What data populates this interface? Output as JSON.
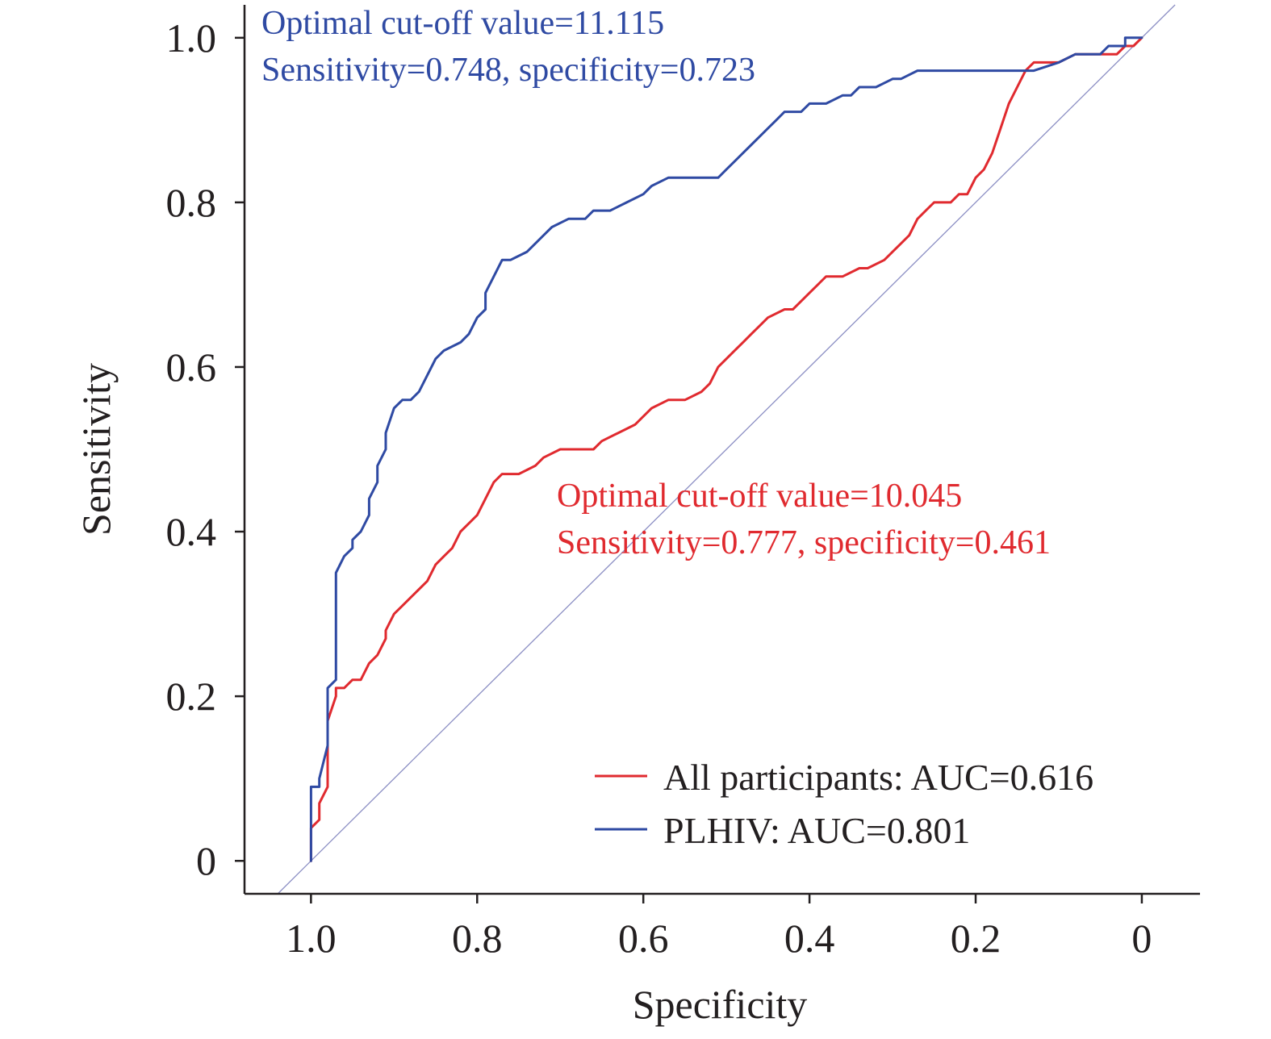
{
  "chart_data": {
    "type": "line",
    "xlabel": "Specificity",
    "ylabel": "Sensitivity",
    "x_reversed": true,
    "xlim": [
      1.08,
      -0.07
    ],
    "ylim": [
      -0.04,
      1.04
    ],
    "x_ticks": [
      1.0,
      0.8,
      0.6,
      0.4,
      0.2,
      0
    ],
    "x_tick_labels": [
      "1.0",
      "0.8",
      "0.6",
      "0.4",
      "0.2",
      "0"
    ],
    "y_ticks": [
      0,
      0.2,
      0.4,
      0.6,
      0.8,
      1.0
    ],
    "y_tick_labels": [
      "0",
      "0.2",
      "0.4",
      "0.6",
      "0.8",
      "1.0"
    ],
    "grid": false,
    "legend_position": "bottom-right",
    "reference_line": {
      "color": "#8c8fc4",
      "from": [
        1.04,
        -0.04
      ],
      "to": [
        -0.04,
        1.04
      ]
    },
    "series": [
      {
        "name": "All participants: AUC=0.616",
        "color": "#e02a2f",
        "points": [
          [
            1.0,
            0.0
          ],
          [
            1.0,
            0.03
          ],
          [
            1.0,
            0.04
          ],
          [
            0.99,
            0.05
          ],
          [
            0.99,
            0.06
          ],
          [
            0.99,
            0.07
          ],
          [
            0.98,
            0.09
          ],
          [
            0.98,
            0.13
          ],
          [
            0.98,
            0.14
          ],
          [
            0.98,
            0.17
          ],
          [
            0.97,
            0.2
          ],
          [
            0.97,
            0.21
          ],
          [
            0.96,
            0.21
          ],
          [
            0.95,
            0.22
          ],
          [
            0.94,
            0.22
          ],
          [
            0.93,
            0.24
          ],
          [
            0.92,
            0.25
          ],
          [
            0.91,
            0.27
          ],
          [
            0.91,
            0.28
          ],
          [
            0.9,
            0.3
          ],
          [
            0.89,
            0.31
          ],
          [
            0.88,
            0.32
          ],
          [
            0.87,
            0.33
          ],
          [
            0.86,
            0.34
          ],
          [
            0.85,
            0.36
          ],
          [
            0.84,
            0.37
          ],
          [
            0.83,
            0.38
          ],
          [
            0.82,
            0.4
          ],
          [
            0.81,
            0.41
          ],
          [
            0.8,
            0.42
          ],
          [
            0.79,
            0.44
          ],
          [
            0.78,
            0.46
          ],
          [
            0.77,
            0.47
          ],
          [
            0.75,
            0.47
          ],
          [
            0.73,
            0.48
          ],
          [
            0.72,
            0.49
          ],
          [
            0.7,
            0.5
          ],
          [
            0.68,
            0.5
          ],
          [
            0.66,
            0.5
          ],
          [
            0.65,
            0.51
          ],
          [
            0.63,
            0.52
          ],
          [
            0.61,
            0.53
          ],
          [
            0.6,
            0.54
          ],
          [
            0.59,
            0.55
          ],
          [
            0.57,
            0.56
          ],
          [
            0.55,
            0.56
          ],
          [
            0.53,
            0.57
          ],
          [
            0.52,
            0.58
          ],
          [
            0.51,
            0.6
          ],
          [
            0.5,
            0.61
          ],
          [
            0.49,
            0.62
          ],
          [
            0.48,
            0.63
          ],
          [
            0.47,
            0.64
          ],
          [
            0.46,
            0.65
          ],
          [
            0.45,
            0.66
          ],
          [
            0.43,
            0.67
          ],
          [
            0.42,
            0.67
          ],
          [
            0.41,
            0.68
          ],
          [
            0.4,
            0.69
          ],
          [
            0.39,
            0.7
          ],
          [
            0.38,
            0.71
          ],
          [
            0.36,
            0.71
          ],
          [
            0.34,
            0.72
          ],
          [
            0.33,
            0.72
          ],
          [
            0.31,
            0.73
          ],
          [
            0.3,
            0.74
          ],
          [
            0.29,
            0.75
          ],
          [
            0.28,
            0.76
          ],
          [
            0.27,
            0.78
          ],
          [
            0.26,
            0.79
          ],
          [
            0.25,
            0.8
          ],
          [
            0.23,
            0.8
          ],
          [
            0.22,
            0.81
          ],
          [
            0.21,
            0.81
          ],
          [
            0.2,
            0.83
          ],
          [
            0.19,
            0.84
          ],
          [
            0.18,
            0.86
          ],
          [
            0.17,
            0.89
          ],
          [
            0.16,
            0.92
          ],
          [
            0.15,
            0.94
          ],
          [
            0.14,
            0.96
          ],
          [
            0.13,
            0.97
          ],
          [
            0.1,
            0.97
          ],
          [
            0.08,
            0.98
          ],
          [
            0.05,
            0.98
          ],
          [
            0.04,
            0.98
          ],
          [
            0.03,
            0.98
          ],
          [
            0.02,
            0.99
          ],
          [
            0.01,
            0.99
          ],
          [
            0.0,
            1.0
          ]
        ]
      },
      {
        "name": "PLHIV: AUC=0.801",
        "color": "#2f4aa3",
        "points": [
          [
            1.0,
            0.0
          ],
          [
            1.0,
            0.04
          ],
          [
            1.0,
            0.09
          ],
          [
            0.99,
            0.09
          ],
          [
            0.99,
            0.1
          ],
          [
            0.98,
            0.14
          ],
          [
            0.98,
            0.21
          ],
          [
            0.97,
            0.22
          ],
          [
            0.97,
            0.35
          ],
          [
            0.96,
            0.37
          ],
          [
            0.95,
            0.38
          ],
          [
            0.95,
            0.39
          ],
          [
            0.94,
            0.4
          ],
          [
            0.93,
            0.42
          ],
          [
            0.93,
            0.44
          ],
          [
            0.92,
            0.46
          ],
          [
            0.92,
            0.48
          ],
          [
            0.91,
            0.5
          ],
          [
            0.91,
            0.52
          ],
          [
            0.9,
            0.55
          ],
          [
            0.89,
            0.56
          ],
          [
            0.88,
            0.56
          ],
          [
            0.87,
            0.57
          ],
          [
            0.86,
            0.59
          ],
          [
            0.85,
            0.61
          ],
          [
            0.84,
            0.62
          ],
          [
            0.82,
            0.63
          ],
          [
            0.81,
            0.64
          ],
          [
            0.8,
            0.66
          ],
          [
            0.79,
            0.67
          ],
          [
            0.79,
            0.69
          ],
          [
            0.78,
            0.71
          ],
          [
            0.77,
            0.73
          ],
          [
            0.76,
            0.73
          ],
          [
            0.74,
            0.74
          ],
          [
            0.73,
            0.75
          ],
          [
            0.72,
            0.76
          ],
          [
            0.71,
            0.77
          ],
          [
            0.69,
            0.78
          ],
          [
            0.68,
            0.78
          ],
          [
            0.67,
            0.78
          ],
          [
            0.66,
            0.79
          ],
          [
            0.64,
            0.79
          ],
          [
            0.62,
            0.8
          ],
          [
            0.6,
            0.81
          ],
          [
            0.59,
            0.82
          ],
          [
            0.57,
            0.83
          ],
          [
            0.55,
            0.83
          ],
          [
            0.53,
            0.83
          ],
          [
            0.51,
            0.83
          ],
          [
            0.5,
            0.84
          ],
          [
            0.49,
            0.85
          ],
          [
            0.48,
            0.86
          ],
          [
            0.47,
            0.87
          ],
          [
            0.46,
            0.88
          ],
          [
            0.45,
            0.89
          ],
          [
            0.44,
            0.9
          ],
          [
            0.43,
            0.91
          ],
          [
            0.41,
            0.91
          ],
          [
            0.4,
            0.92
          ],
          [
            0.38,
            0.92
          ],
          [
            0.36,
            0.93
          ],
          [
            0.35,
            0.93
          ],
          [
            0.34,
            0.94
          ],
          [
            0.32,
            0.94
          ],
          [
            0.3,
            0.95
          ],
          [
            0.29,
            0.95
          ],
          [
            0.27,
            0.96
          ],
          [
            0.25,
            0.96
          ],
          [
            0.22,
            0.96
          ],
          [
            0.2,
            0.96
          ],
          [
            0.17,
            0.96
          ],
          [
            0.15,
            0.96
          ],
          [
            0.13,
            0.96
          ],
          [
            0.1,
            0.97
          ],
          [
            0.08,
            0.98
          ],
          [
            0.05,
            0.98
          ],
          [
            0.04,
            0.99
          ],
          [
            0.03,
            0.99
          ],
          [
            0.02,
            0.99
          ],
          [
            0.02,
            1.0
          ],
          [
            0.0,
            1.0
          ]
        ]
      }
    ],
    "annotations": [
      {
        "lines": [
          "Optimal cut-off value=11.115",
          "Sensitivity=0.748, specificity=0.723"
        ],
        "color": "#2f4aa3",
        "series": "PLHIV: AUC=0.801"
      },
      {
        "lines": [
          "Optimal cut-off value=10.045",
          "Sensitivity=0.777, specificity=0.461"
        ],
        "color": "#e02a2f",
        "series": "All participants: AUC=0.616"
      }
    ]
  }
}
